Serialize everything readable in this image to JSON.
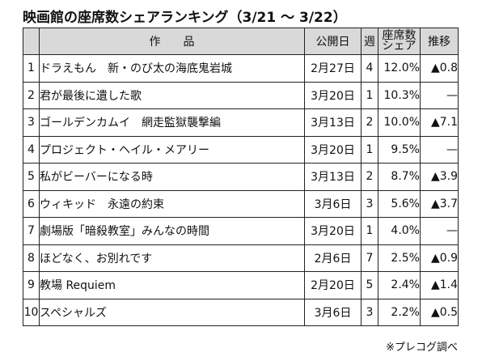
{
  "title": "映画館の座席数シェアランキング（3/21 〜 3/22）",
  "headers": {
    "rank": "",
    "title": "作品",
    "release": "公開日",
    "week": "週",
    "share_line1": "座席数",
    "share_line2": "シェア",
    "trend": "推移"
  },
  "rows": [
    {
      "rank": "1",
      "title": "ドラえもん　新・のび太の海底鬼岩城",
      "release": "2月27日",
      "week": "4",
      "share": "12.0%",
      "trend": "▲0.8"
    },
    {
      "rank": "2",
      "title": "君が最後に遺した歌",
      "release": "3月20日",
      "week": "1",
      "share": "10.3%",
      "trend": "—"
    },
    {
      "rank": "3",
      "title": "ゴールデンカムイ　網走監獄襲撃編",
      "release": "3月13日",
      "week": "2",
      "share": "10.0%",
      "trend": "▲7.1"
    },
    {
      "rank": "4",
      "title": "プロジェクト・ヘイル・メアリー",
      "release": "3月20日",
      "week": "1",
      "share": "9.5%",
      "trend": "—"
    },
    {
      "rank": "5",
      "title": "私がビーバーになる時",
      "release": "3月13日",
      "week": "2",
      "share": "8.7%",
      "trend": "▲3.9"
    },
    {
      "rank": "6",
      "title": "ウィキッド　永遠の約束",
      "release": "3月6日",
      "week": "3",
      "share": "5.6%",
      "trend": "▲3.7"
    },
    {
      "rank": "7",
      "title": "劇場版「暗殺教室」みんなの時間",
      "release": "3月20日",
      "week": "1",
      "share": "4.0%",
      "trend": "—"
    },
    {
      "rank": "8",
      "title": "ほどなく、お別れです",
      "release": "2月6日",
      "week": "7",
      "share": "2.5%",
      "trend": "▲0.9"
    },
    {
      "rank": "9",
      "title": "教場 Requiem",
      "release": "2月20日",
      "week": "5",
      "share": "2.4%",
      "trend": "▲1.4"
    },
    {
      "rank": "10",
      "title": "スペシャルズ",
      "release": "3月6日",
      "week": "3",
      "share": "2.2%",
      "trend": "▲0.5"
    }
  ],
  "footer": "※プレコグ調べ"
}
